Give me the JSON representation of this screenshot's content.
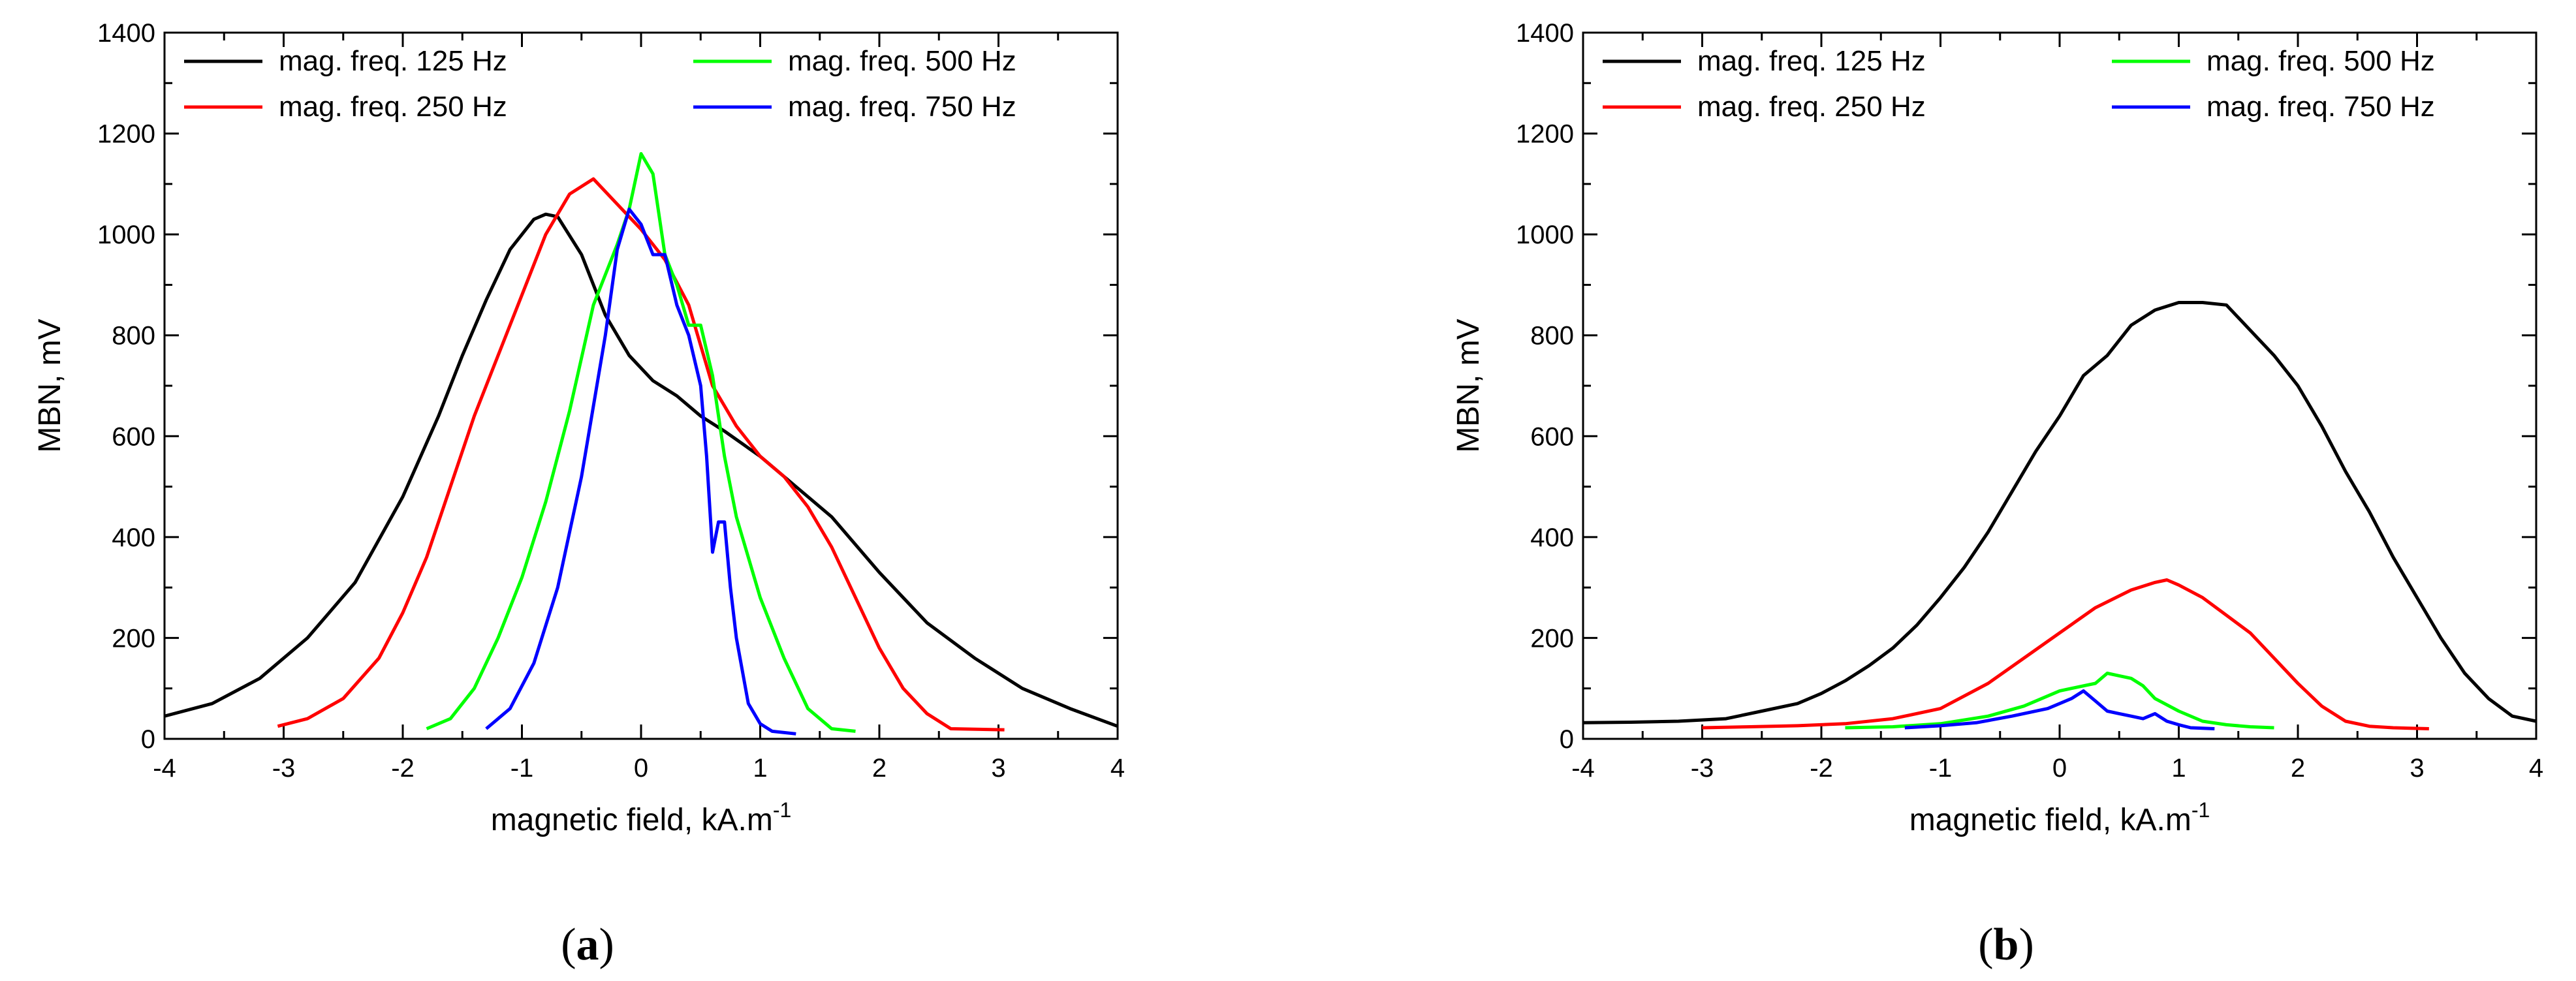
{
  "chart_data": [
    {
      "type": "line",
      "panel_label": "a",
      "xlabel": "magnetic field, kA.m",
      "xlabel_sup": "-1",
      "ylabel": "MBN, mV",
      "xlim": [
        -4,
        4
      ],
      "ylim": [
        0,
        1400
      ],
      "xticks": [
        -4,
        -3,
        -2,
        -1,
        0,
        1,
        2,
        3,
        4
      ],
      "yticks": [
        0,
        200,
        400,
        600,
        800,
        1000,
        1200,
        1400
      ],
      "legend": "top",
      "series": [
        {
          "name": "mag. freq. 125 Hz",
          "color": "#000000",
          "x": [
            -4.0,
            -3.6,
            -3.2,
            -2.8,
            -2.4,
            -2.0,
            -1.7,
            -1.5,
            -1.3,
            -1.1,
            -0.9,
            -0.8,
            -0.7,
            -0.5,
            -0.3,
            -0.1,
            0.1,
            0.3,
            0.5,
            0.7,
            1.0,
            1.3,
            1.6,
            2.0,
            2.4,
            2.8,
            3.2,
            3.6,
            4.0
          ],
          "y": [
            45,
            70,
            120,
            200,
            310,
            480,
            640,
            760,
            870,
            970,
            1030,
            1040,
            1035,
            960,
            840,
            760,
            710,
            680,
            640,
            610,
            560,
            500,
            440,
            330,
            230,
            160,
            100,
            60,
            25
          ]
        },
        {
          "name": "mag. freq. 250 Hz",
          "color": "#ff0000",
          "x": [
            -3.05,
            -2.8,
            -2.5,
            -2.2,
            -2.0,
            -1.8,
            -1.6,
            -1.4,
            -1.2,
            -1.0,
            -0.8,
            -0.6,
            -0.4,
            -0.2,
            0.0,
            0.2,
            0.4,
            0.6,
            0.8,
            1.0,
            1.2,
            1.4,
            1.6,
            1.8,
            2.0,
            2.2,
            2.4,
            2.6,
            3.05
          ],
          "y": [
            25,
            40,
            80,
            160,
            250,
            360,
            500,
            640,
            760,
            880,
            1000,
            1080,
            1110,
            1060,
            1010,
            950,
            860,
            700,
            620,
            560,
            520,
            460,
            380,
            280,
            180,
            100,
            50,
            20,
            18
          ]
        },
        {
          "name": "mag. freq. 500 Hz",
          "color": "#00ff00",
          "x": [
            -1.8,
            -1.6,
            -1.4,
            -1.2,
            -1.0,
            -0.8,
            -0.6,
            -0.4,
            -0.2,
            -0.1,
            0.0,
            0.1,
            0.2,
            0.3,
            0.4,
            0.5,
            0.6,
            0.7,
            0.8,
            0.9,
            1.0,
            1.2,
            1.4,
            1.6,
            1.8
          ],
          "y": [
            20,
            40,
            100,
            200,
            320,
            470,
            650,
            860,
            980,
            1050,
            1160,
            1120,
            960,
            900,
            820,
            820,
            720,
            560,
            440,
            360,
            280,
            160,
            60,
            20,
            15
          ]
        },
        {
          "name": "mag. freq. 750 Hz",
          "color": "#0000ff",
          "x": [
            -1.3,
            -1.1,
            -0.9,
            -0.7,
            -0.5,
            -0.3,
            -0.2,
            -0.1,
            0.0,
            0.1,
            0.2,
            0.3,
            0.4,
            0.5,
            0.55,
            0.6,
            0.65,
            0.7,
            0.75,
            0.8,
            0.9,
            1.0,
            1.1,
            1.3
          ],
          "y": [
            20,
            60,
            150,
            300,
            520,
            800,
            970,
            1050,
            1020,
            960,
            960,
            860,
            800,
            700,
            560,
            370,
            430,
            430,
            300,
            200,
            70,
            30,
            15,
            10
          ]
        }
      ]
    },
    {
      "type": "line",
      "panel_label": "b",
      "xlabel": "magnetic field, kA.m",
      "xlabel_sup": "-1",
      "ylabel": "MBN, mV",
      "xlim": [
        -4,
        4
      ],
      "ylim": [
        0,
        1400
      ],
      "xticks": [
        -4,
        -3,
        -2,
        -1,
        0,
        1,
        2,
        3,
        4
      ],
      "yticks": [
        0,
        200,
        400,
        600,
        800,
        1000,
        1200,
        1400
      ],
      "legend": "top",
      "series": [
        {
          "name": "mag. freq. 125 Hz",
          "color": "#000000",
          "x": [
            -4.0,
            -3.6,
            -3.2,
            -2.8,
            -2.5,
            -2.2,
            -2.0,
            -1.8,
            -1.6,
            -1.4,
            -1.2,
            -1.0,
            -0.8,
            -0.6,
            -0.4,
            -0.2,
            0.0,
            0.2,
            0.4,
            0.6,
            0.8,
            1.0,
            1.2,
            1.4,
            1.6,
            1.8,
            2.0,
            2.2,
            2.4,
            2.6,
            2.8,
            3.0,
            3.2,
            3.4,
            3.6,
            3.8,
            4.0
          ],
          "y": [
            32,
            33,
            35,
            40,
            55,
            70,
            90,
            115,
            145,
            180,
            225,
            280,
            340,
            410,
            490,
            570,
            640,
            720,
            760,
            820,
            850,
            865,
            865,
            860,
            810,
            760,
            700,
            620,
            530,
            450,
            360,
            280,
            200,
            130,
            80,
            45,
            35
          ]
        },
        {
          "name": "mag. freq. 250 Hz",
          "color": "#ff0000",
          "x": [
            -3.0,
            -2.6,
            -2.2,
            -1.8,
            -1.4,
            -1.0,
            -0.6,
            -0.3,
            0.0,
            0.3,
            0.6,
            0.8,
            0.9,
            1.0,
            1.2,
            1.4,
            1.6,
            1.8,
            2.0,
            2.2,
            2.4,
            2.6,
            2.8,
            3.1
          ],
          "y": [
            22,
            24,
            26,
            30,
            40,
            60,
            110,
            160,
            210,
            260,
            295,
            310,
            315,
            305,
            280,
            245,
            210,
            160,
            110,
            65,
            35,
            25,
            22,
            20
          ]
        },
        {
          "name": "mag. freq. 500 Hz",
          "color": "#00ff00",
          "x": [
            -1.8,
            -1.4,
            -1.0,
            -0.6,
            -0.3,
            0.0,
            0.2,
            0.3,
            0.4,
            0.5,
            0.6,
            0.7,
            0.8,
            1.0,
            1.2,
            1.4,
            1.6,
            1.8
          ],
          "y": [
            22,
            24,
            30,
            45,
            65,
            95,
            105,
            110,
            130,
            125,
            120,
            105,
            80,
            55,
            35,
            28,
            24,
            22
          ]
        },
        {
          "name": "mag. freq. 750 Hz",
          "color": "#0000ff",
          "x": [
            -1.3,
            -1.0,
            -0.7,
            -0.4,
            -0.1,
            0.0,
            0.1,
            0.2,
            0.3,
            0.4,
            0.5,
            0.6,
            0.7,
            0.8,
            0.9,
            1.0,
            1.1,
            1.3
          ],
          "y": [
            22,
            26,
            32,
            45,
            60,
            70,
            80,
            95,
            75,
            55,
            50,
            45,
            40,
            50,
            35,
            28,
            22,
            20
          ]
        }
      ]
    }
  ]
}
